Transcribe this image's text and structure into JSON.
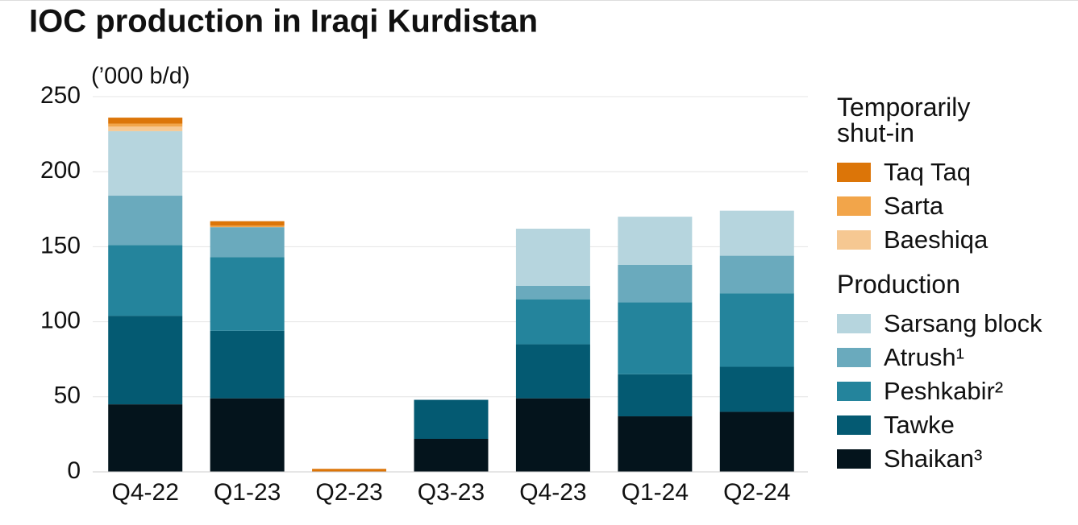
{
  "chart_data": {
    "type": "stacked_bar",
    "title": "IOC production in Iraqi Kurdistan",
    "y_label": "(’000 b/d)",
    "categories": [
      "Q4-22",
      "Q1-23",
      "Q2-23",
      "Q3-23",
      "Q4-23",
      "Q1-24",
      "Q2-24"
    ],
    "legend_groups": [
      "Temporarily shut-in",
      "Production"
    ],
    "series": [
      {
        "name": "Shaikan³",
        "color": "#04141c",
        "legend_group": 1,
        "values": [
          45,
          49,
          0,
          22,
          49,
          37,
          40
        ]
      },
      {
        "name": "Tawke",
        "color": "#045a72",
        "legend_group": 1,
        "values": [
          59,
          45,
          0,
          26,
          36,
          28,
          30
        ]
      },
      {
        "name": "Peshkabir²",
        "color": "#24849c",
        "legend_group": 1,
        "values": [
          47,
          49,
          0,
          0,
          30,
          48,
          49
        ]
      },
      {
        "name": "Atrush¹",
        "color": "#6aaabd",
        "legend_group": 1,
        "values": [
          33,
          20,
          0,
          0,
          9,
          25,
          25
        ]
      },
      {
        "name": "Sarsang block",
        "color": "#b6d5de",
        "legend_group": 1,
        "values": [
          43,
          0,
          0,
          0,
          38,
          32,
          30
        ]
      },
      {
        "name": "Baeshiqa",
        "color": "#f6c892",
        "legend_group": 0,
        "values": [
          3,
          0,
          0,
          0,
          0,
          0,
          0
        ]
      },
      {
        "name": "Sarta",
        "color": "#f2a54a",
        "legend_group": 0,
        "values": [
          2,
          1,
          0,
          0,
          0,
          0,
          0
        ]
      },
      {
        "name": "Taq Taq",
        "color": "#dc7508",
        "legend_group": 0,
        "values": [
          4,
          3,
          2,
          0,
          0,
          0,
          0
        ]
      }
    ],
    "ylim": [
      0,
      250
    ],
    "yticks": [
      0,
      50,
      100,
      150,
      200,
      250
    ],
    "grid": true
  }
}
